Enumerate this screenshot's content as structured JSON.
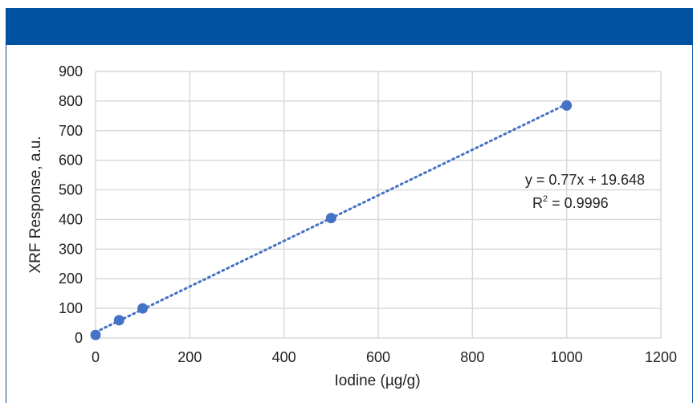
{
  "colors": {
    "header": "#0051a0",
    "marker": "#4472c4",
    "trendline": "#4472c4",
    "grid": "#d9d9d9"
  },
  "chart_data": {
    "type": "scatter",
    "title": "",
    "xlabel": "Iodine (µg/g)",
    "ylabel": "XRF Response, a.u.",
    "xlim": [
      0,
      1200
    ],
    "ylim": [
      0,
      900
    ],
    "xticks": [
      0,
      200,
      400,
      600,
      800,
      1000,
      1200
    ],
    "yticks": [
      0,
      100,
      200,
      300,
      400,
      500,
      600,
      700,
      800,
      900
    ],
    "grid": true,
    "legend": "none",
    "series": [
      {
        "x": [
          0,
          50,
          100,
          500,
          1000
        ],
        "y": [
          10,
          60,
          100,
          405,
          785
        ]
      }
    ],
    "trendline": {
      "type": "linear",
      "slope": 0.77,
      "intercept": 19.648,
      "style": "dotted"
    },
    "annotations": {
      "equation": "y = 0.77x + 19.648",
      "r2_prefix": "R",
      "r2_sup": "2",
      "r2_value": " = 0.9996"
    }
  }
}
